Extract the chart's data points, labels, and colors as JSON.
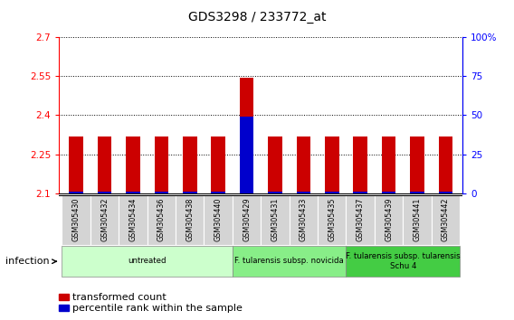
{
  "title": "GDS3298 / 233772_at",
  "samples": [
    "GSM305430",
    "GSM305432",
    "GSM305434",
    "GSM305436",
    "GSM305438",
    "GSM305440",
    "GSM305429",
    "GSM305431",
    "GSM305433",
    "GSM305435",
    "GSM305437",
    "GSM305439",
    "GSM305441",
    "GSM305442"
  ],
  "red_values": [
    2.317,
    2.317,
    2.319,
    2.318,
    2.317,
    2.317,
    2.545,
    2.317,
    2.317,
    2.317,
    2.317,
    2.319,
    2.318,
    2.317
  ],
  "blue_values_pct": [
    1.0,
    1.0,
    1.0,
    1.0,
    1.0,
    1.0,
    49.0,
    1.0,
    1.0,
    1.0,
    1.0,
    1.0,
    1.0,
    1.0
  ],
  "y_min": 2.1,
  "y_max": 2.7,
  "y_ticks": [
    2.1,
    2.25,
    2.4,
    2.55,
    2.7
  ],
  "y_ticks_right": [
    0,
    25,
    50,
    75,
    100
  ],
  "groups": [
    {
      "label": "untreated",
      "start": 0,
      "end": 6,
      "color": "#ccffcc"
    },
    {
      "label": "F. tularensis subsp. novicida",
      "start": 6,
      "end": 10,
      "color": "#88ee88"
    },
    {
      "label": "F. tularensis subsp. tularensis\nSchu 4",
      "start": 10,
      "end": 14,
      "color": "#44cc44"
    }
  ],
  "legend_red": "transformed count",
  "legend_blue": "percentile rank within the sample",
  "infection_label": "infection",
  "bar_color_red": "#cc0000",
  "bar_color_blue": "#0000cc",
  "plot_bg": "#ffffff",
  "red_bar_width": 0.5,
  "blue_bar_width": 0.5
}
